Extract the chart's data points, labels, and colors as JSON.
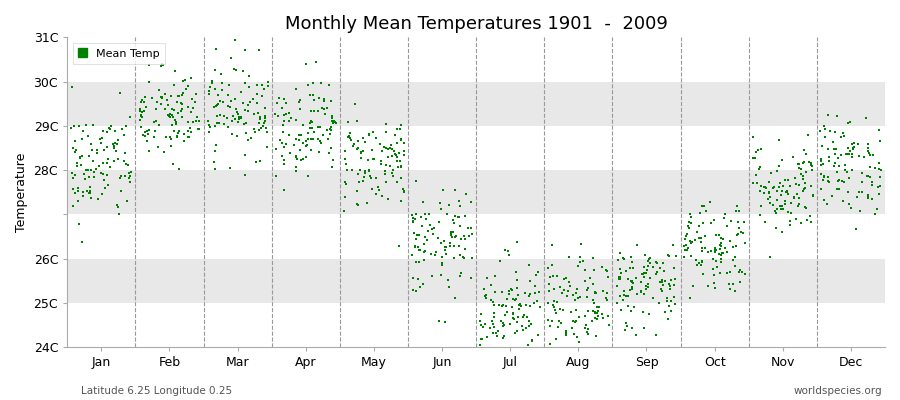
{
  "title": "Monthly Mean Temperatures 1901  -  2009",
  "ylabel": "Temperature",
  "subtitle_left": "Latitude 6.25 Longitude 0.25",
  "subtitle_right": "worldspecies.org",
  "legend_label": "Mean Temp",
  "marker_color": "#008000",
  "background_color": "#ffffff",
  "band_color": "#e8e8e8",
  "ylim": [
    24,
    31
  ],
  "yticks": [
    24,
    25,
    26,
    27,
    28,
    29,
    30,
    31
  ],
  "ytick_labels": [
    "24C",
    "25C",
    "26C",
    "",
    "28C",
    "29C",
    "30C",
    "31C"
  ],
  "months": [
    "Jan",
    "Feb",
    "Mar",
    "Apr",
    "May",
    "Jun",
    "Jul",
    "Aug",
    "Sep",
    "Oct",
    "Nov",
    "Dec"
  ],
  "monthly_means": [
    28.1,
    29.2,
    29.4,
    29.0,
    28.2,
    26.3,
    24.9,
    24.9,
    25.4,
    26.3,
    27.6,
    28.1
  ],
  "monthly_stds": [
    0.65,
    0.55,
    0.55,
    0.55,
    0.55,
    0.6,
    0.6,
    0.55,
    0.5,
    0.55,
    0.55,
    0.55
  ],
  "n_years": 109,
  "seed": 42
}
